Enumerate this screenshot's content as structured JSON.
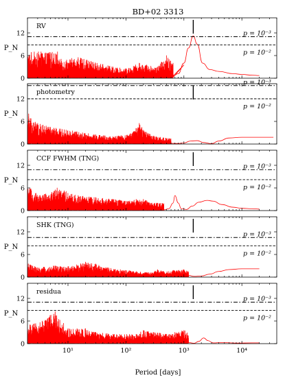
{
  "chart_data": {
    "type": "line",
    "title": "BD+02 3313",
    "xlabel": "Period [days]",
    "xscale": "log",
    "xlim": [
      2,
      40000
    ],
    "x_ticks": [
      {
        "value": 10,
        "label": "10¹"
      },
      {
        "value": 100,
        "label": "10²"
      },
      {
        "value": 1000,
        "label": "10³"
      },
      {
        "value": 10000,
        "label": "10⁴"
      }
    ],
    "ylabel": "P_N",
    "y_ticks": [
      0,
      6,
      12
    ],
    "marker_period": 1450,
    "panels": [
      {
        "name": "RV",
        "ylim": [
          0,
          16
        ],
        "fap_levels": [
          {
            "label": "p = 10⁻³",
            "value": 11
          },
          {
            "label": "p = 10⁻²",
            "value": 8.8
          }
        ],
        "peaks": [
          [
            6.6,
            7
          ],
          [
            3.2,
            4.5
          ],
          [
            15,
            5.5
          ],
          [
            25,
            4.5
          ],
          [
            60,
            3
          ],
          [
            100,
            2.5
          ],
          [
            170,
            4
          ],
          [
            350,
            3
          ],
          [
            500,
            6
          ],
          [
            650,
            4
          ],
          [
            1000,
            3.5
          ]
        ],
        "smooth": [
          [
            650,
            0.6
          ],
          [
            800,
            1.2
          ],
          [
            1000,
            4
          ],
          [
            1200,
            8
          ],
          [
            1450,
            11.2
          ],
          [
            1700,
            9
          ],
          [
            2100,
            4
          ],
          [
            2800,
            2.3
          ],
          [
            4000,
            1.8
          ],
          [
            7000,
            1.2
          ],
          [
            10000,
            1
          ],
          [
            15000,
            0.8
          ],
          [
            20000,
            0.7
          ]
        ]
      },
      {
        "name": "photometry",
        "ylim": [
          0,
          16
        ],
        "fap_levels": [
          {
            "label": "p = 10⁻³",
            "value": 15.5
          },
          {
            "label": "p = 10⁻²",
            "value": 12
          }
        ],
        "peaks": [
          [
            2.1,
            8
          ],
          [
            3,
            5.5
          ],
          [
            5,
            4.5
          ],
          [
            12,
            3.5
          ],
          [
            30,
            2.5
          ],
          [
            60,
            2
          ],
          [
            115,
            2.5
          ],
          [
            170,
            5.5
          ],
          [
            230,
            3
          ],
          [
            330,
            2
          ],
          [
            550,
            1.5
          ]
        ],
        "smooth": [
          [
            600,
            0.2
          ],
          [
            800,
            0.15
          ],
          [
            1000,
            0.3
          ],
          [
            1300,
            0.8
          ],
          [
            1700,
            0.9
          ],
          [
            2200,
            0.4
          ],
          [
            3000,
            0.1
          ],
          [
            4000,
            0.8
          ],
          [
            6000,
            1.6
          ],
          [
            10000,
            1.8
          ],
          [
            15000,
            1.8
          ],
          [
            20000,
            1.8
          ],
          [
            35000,
            1.8
          ]
        ]
      },
      {
        "name": "CCF FWHM (TNG)",
        "ylim": [
          0,
          16
        ],
        "fap_levels": [
          {
            "label": "p = 10⁻³",
            "value": 10.8
          },
          {
            "label": "p = 10⁻²",
            "value": 8.2
          }
        ],
        "peaks": [
          [
            2.2,
            6
          ],
          [
            3.2,
            4
          ],
          [
            6.5,
            6
          ],
          [
            15,
            4
          ],
          [
            30,
            3.5
          ],
          [
            60,
            3
          ],
          [
            110,
            2.5
          ],
          [
            150,
            3
          ],
          [
            200,
            3
          ],
          [
            280,
            2
          ]
        ],
        "smooth": [
          [
            450,
            0.2
          ],
          [
            550,
            0.5
          ],
          [
            650,
            2
          ],
          [
            700,
            4
          ],
          [
            800,
            2
          ],
          [
            900,
            0.5
          ],
          [
            1100,
            0.3
          ],
          [
            1400,
            1.2
          ],
          [
            1800,
            2.2
          ],
          [
            2500,
            2.7
          ],
          [
            3200,
            2.5
          ],
          [
            4500,
            1.6
          ],
          [
            7000,
            0.9
          ],
          [
            10000,
            0.6
          ],
          [
            15000,
            0.5
          ],
          [
            20000,
            0.4
          ]
        ]
      },
      {
        "name": "SHK (TNG)",
        "ylim": [
          0,
          16
        ],
        "fap_levels": [
          {
            "label": "p = 10⁻³",
            "value": 10.5
          },
          {
            "label": "p = 10⁻²",
            "value": 8.3
          }
        ],
        "peaks": [
          [
            2.1,
            3.5
          ],
          [
            3,
            2.5
          ],
          [
            6,
            3
          ],
          [
            10,
            2.8
          ],
          [
            20,
            4
          ],
          [
            30,
            3.5
          ],
          [
            50,
            2.5
          ],
          [
            80,
            2
          ],
          [
            150,
            1.5
          ],
          [
            270,
            1.2
          ],
          [
            350,
            2
          ],
          [
            450,
            1.5
          ],
          [
            650,
            1.8
          ],
          [
            1000,
            2
          ]
        ],
        "smooth": [
          [
            1200,
            0.5
          ],
          [
            1500,
            0.2
          ],
          [
            2000,
            0.3
          ],
          [
            2800,
            0.8
          ],
          [
            4000,
            1.5
          ],
          [
            6000,
            2
          ],
          [
            10000,
            2.2
          ],
          [
            15000,
            2.2
          ],
          [
            20000,
            2.2
          ]
        ]
      },
      {
        "name": "residua",
        "ylim": [
          0,
          16
        ],
        "fap_levels": [
          {
            "label": "p = 10⁻³",
            "value": 11
          },
          {
            "label": "p = 10⁻²",
            "value": 8.8
          }
        ],
        "peaks": [
          [
            2.2,
            5
          ],
          [
            3.6,
            6
          ],
          [
            6,
            8.5
          ],
          [
            10,
            4
          ],
          [
            20,
            4
          ],
          [
            30,
            3
          ],
          [
            60,
            2.5
          ],
          [
            150,
            2.5
          ],
          [
            200,
            3.5
          ],
          [
            500,
            2.5
          ],
          [
            700,
            3
          ],
          [
            1000,
            3.5
          ]
        ],
        "smooth": [
          [
            1200,
            0.3
          ],
          [
            1500,
            0.1
          ],
          [
            1800,
            0.6
          ],
          [
            2200,
            1.5
          ],
          [
            2600,
            0.8
          ],
          [
            3200,
            0.2
          ],
          [
            4500,
            0.3
          ],
          [
            8000,
            0.15
          ],
          [
            15000,
            0.2
          ],
          [
            20000,
            0.2
          ]
        ]
      }
    ]
  }
}
